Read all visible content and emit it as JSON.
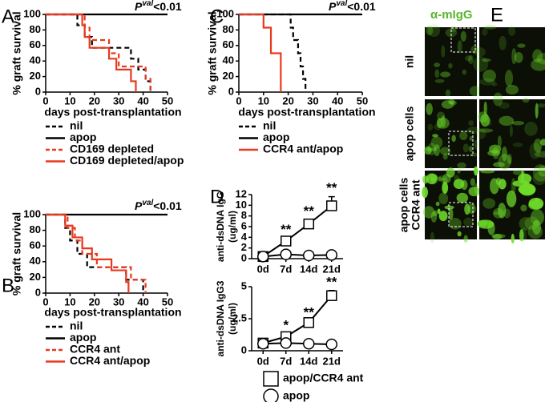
{
  "chart_data": [
    {
      "panel": "A",
      "type": "line",
      "step": true,
      "annotation": {
        "symbol": "P",
        "superscript": "val",
        "suffix": "<0.01"
      },
      "xlabel": "days post-transplantation",
      "ylabel": "% graft survival",
      "xlim": [
        0,
        50
      ],
      "xticks": [
        0,
        10,
        20,
        30,
        40,
        50
      ],
      "ylim": [
        0,
        100
      ],
      "yticks": [
        0,
        20,
        40,
        60,
        80,
        100
      ],
      "series": [
        {
          "name": "nil",
          "color": "#000000",
          "dash": true,
          "x": [
            0,
            13,
            16,
            19,
            35,
            38,
            41,
            43
          ],
          "values": [
            100,
            86,
            71,
            57,
            43,
            29,
            14,
            0
          ]
        },
        {
          "name": "apop",
          "color": "#000000",
          "dash": false,
          "x": [
            0,
            50
          ],
          "values": [
            100,
            100
          ]
        },
        {
          "name": "CD169 depleted",
          "color": "#e8391e",
          "dash": true,
          "x": [
            0,
            16,
            18,
            26,
            30,
            41,
            43
          ],
          "values": [
            100,
            83,
            67,
            50,
            33,
            17,
            0
          ]
        },
        {
          "name": "CD169 depleted/apop",
          "color": "#e8391e",
          "dash": false,
          "x": [
            0,
            15,
            16,
            18,
            26,
            29,
            35,
            37
          ],
          "values": [
            100,
            86,
            71,
            57,
            43,
            29,
            14,
            0
          ]
        }
      ]
    },
    {
      "panel": "B",
      "type": "line",
      "step": true,
      "annotation": {
        "symbol": "P",
        "superscript": "val",
        "suffix": "<0.01"
      },
      "xlabel": "days post-transplantation",
      "ylabel": "% graft survival",
      "xlim": [
        0,
        50
      ],
      "xticks": [
        0,
        10,
        20,
        30,
        40,
        50
      ],
      "ylim": [
        0,
        100
      ],
      "yticks": [
        0,
        20,
        40,
        60,
        80,
        100
      ],
      "series": [
        {
          "name": "nil",
          "color": "#000000",
          "dash": true,
          "x": [
            0,
            8,
            10,
            13,
            17,
            33,
            40
          ],
          "values": [
            100,
            83,
            67,
            50,
            33,
            17,
            0
          ]
        },
        {
          "name": "apop",
          "color": "#000000",
          "dash": false,
          "x": [
            0,
            50
          ],
          "values": [
            100,
            100
          ]
        },
        {
          "name": "CCR4 ant",
          "color": "#e8391e",
          "dash": true,
          "x": [
            0,
            9,
            12,
            15,
            21,
            35,
            41
          ],
          "values": [
            100,
            83,
            67,
            50,
            33,
            17,
            0
          ]
        },
        {
          "name": "CCR4 ant/apop",
          "color": "#e8391e",
          "dash": false,
          "x": [
            0,
            8,
            11,
            15,
            19,
            27,
            33,
            34
          ],
          "values": [
            100,
            86,
            71,
            57,
            43,
            29,
            14,
            0
          ]
        }
      ]
    },
    {
      "panel": "C",
      "type": "line",
      "step": true,
      "annotation": {
        "symbol": "P",
        "superscript": "val",
        "suffix": "<0.01"
      },
      "xlabel": "days post-transplantation",
      "ylabel": "% graft survival",
      "xlim": [
        0,
        50
      ],
      "xticks": [
        0,
        10,
        20,
        30,
        40,
        50
      ],
      "ylim": [
        0,
        100
      ],
      "yticks": [
        0,
        20,
        40,
        60,
        80,
        100
      ],
      "series": [
        {
          "name": "nil",
          "color": "#000000",
          "dash": true,
          "x": [
            0,
            21,
            22,
            24,
            25,
            26,
            27
          ],
          "values": [
            100,
            83,
            67,
            50,
            33,
            17,
            0
          ]
        },
        {
          "name": "apop",
          "color": "#000000",
          "dash": false,
          "x": [
            0,
            50
          ],
          "values": [
            100,
            100
          ]
        },
        {
          "name": "CCR4 ant/apop",
          "color": "#e8391e",
          "dash": false,
          "x": [
            0,
            10,
            13,
            17
          ],
          "values": [
            100,
            83,
            50,
            0
          ]
        }
      ]
    },
    {
      "panel": "D",
      "type": "line",
      "step": false,
      "ylabel": [
        "anti-dsDNA IgG",
        "(ug/ml)"
      ],
      "categories": [
        "0d",
        "7d",
        "14d",
        "21d"
      ],
      "ylim": [
        0,
        12
      ],
      "yticks": [
        0,
        2,
        4,
        6,
        8,
        10,
        12
      ],
      "significance": [
        null,
        "**",
        "**",
        "**"
      ],
      "series": [
        {
          "marker": "square",
          "color": "#000000",
          "values": [
            0.4,
            3.3,
            6.5,
            9.9
          ],
          "errors": [
            0.3,
            0.5,
            0.8,
            1.7
          ]
        },
        {
          "marker": "circle",
          "color": "#000000",
          "values": [
            0.4,
            0.8,
            0.6,
            0.7
          ],
          "errors": [
            0.2,
            0.3,
            0.2,
            0.3
          ]
        }
      ]
    },
    {
      "type": "line",
      "step": false,
      "ylabel": [
        "anti-dsDNA IgG3",
        "(ug/ml)"
      ],
      "categories": [
        "0d",
        "7d",
        "14d",
        "21d"
      ],
      "ylim": [
        0,
        5
      ],
      "yticks": [
        0,
        2.5,
        5
      ],
      "significance": [
        null,
        "*",
        "**",
        "**"
      ],
      "series": [
        {
          "name": "apop/CCR4 ant",
          "marker": "square",
          "color": "#000000",
          "values": [
            0.6,
            1.1,
            2.2,
            4.3
          ],
          "errors": [
            0.1,
            0.2,
            0.1,
            0.4
          ]
        },
        {
          "name": "apop",
          "marker": "circle",
          "color": "#000000",
          "values": [
            0.55,
            0.6,
            0.55,
            0.5
          ],
          "errors": [
            0.05,
            0.1,
            0.05,
            0.05
          ]
        }
      ]
    }
  ],
  "images": {
    "panel": "E",
    "title": "α-mIgG",
    "rows": [
      [
        "nil"
      ],
      [
        "apop cells"
      ],
      [
        "apop cells",
        "CCR4 ant"
      ]
    ]
  }
}
